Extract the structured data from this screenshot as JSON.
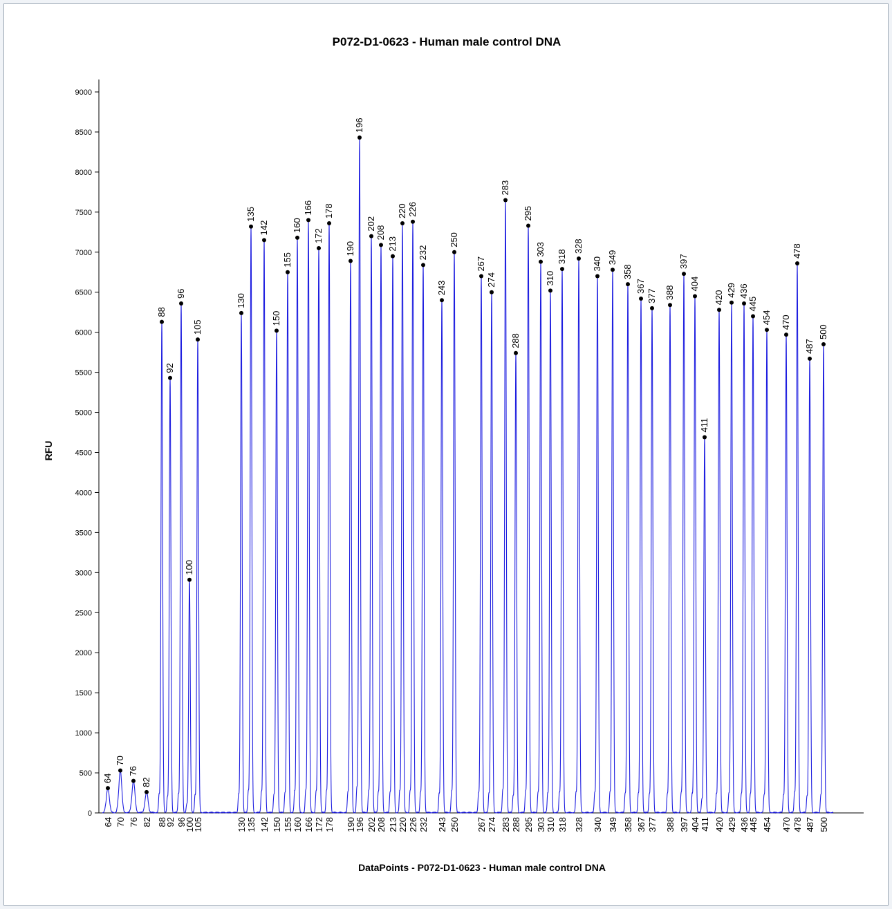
{
  "chart_data": {
    "type": "line",
    "title": "P072-D1-0623 - Human male control DNA",
    "xlabel": "DataPoints - P072-D1-0623 - Human male control DNA",
    "ylabel": "RFU",
    "ylim": [
      0,
      9000
    ],
    "ytick_step": 500,
    "grid": false,
    "legend": "none",
    "colors": {
      "trace": "#1f1fe0",
      "axis": "#000000",
      "background": "#ffffff"
    },
    "peaks": [
      {
        "label": "64",
        "rfu": 310
      },
      {
        "label": "70",
        "rfu": 530
      },
      {
        "label": "76",
        "rfu": 400
      },
      {
        "label": "82",
        "rfu": 260
      },
      {
        "label": "88",
        "rfu": 6130
      },
      {
        "label": "92",
        "rfu": 5430
      },
      {
        "label": "96",
        "rfu": 6360
      },
      {
        "label": "100",
        "rfu": 2910
      },
      {
        "label": "105",
        "rfu": 5910
      },
      {
        "label": "130",
        "rfu": 6240
      },
      {
        "label": "135",
        "rfu": 7320
      },
      {
        "label": "142",
        "rfu": 7150
      },
      {
        "label": "150",
        "rfu": 6020
      },
      {
        "label": "155",
        "rfu": 6750
      },
      {
        "label": "160",
        "rfu": 7180
      },
      {
        "label": "166",
        "rfu": 7400
      },
      {
        "label": "172",
        "rfu": 7050
      },
      {
        "label": "178",
        "rfu": 7360
      },
      {
        "label": "190",
        "rfu": 6890
      },
      {
        "label": "196",
        "rfu": 8430
      },
      {
        "label": "202",
        "rfu": 7200
      },
      {
        "label": "208",
        "rfu": 7090
      },
      {
        "label": "213",
        "rfu": 6950
      },
      {
        "label": "220",
        "rfu": 7360
      },
      {
        "label": "226",
        "rfu": 7380
      },
      {
        "label": "232",
        "rfu": 6840
      },
      {
        "label": "243",
        "rfu": 6400
      },
      {
        "label": "250",
        "rfu": 7000
      },
      {
        "label": "267",
        "rfu": 6700
      },
      {
        "label": "274",
        "rfu": 6500
      },
      {
        "label": "283",
        "rfu": 7650
      },
      {
        "label": "288",
        "rfu": 5740
      },
      {
        "label": "295",
        "rfu": 7330
      },
      {
        "label": "303",
        "rfu": 6880
      },
      {
        "label": "310",
        "rfu": 6520
      },
      {
        "label": "318",
        "rfu": 6790
      },
      {
        "label": "328",
        "rfu": 6920
      },
      {
        "label": "340",
        "rfu": 6700
      },
      {
        "label": "349",
        "rfu": 6780
      },
      {
        "label": "358",
        "rfu": 6600
      },
      {
        "label": "367",
        "rfu": 6420
      },
      {
        "label": "377",
        "rfu": 6300
      },
      {
        "label": "388",
        "rfu": 6340
      },
      {
        "label": "397",
        "rfu": 6730
      },
      {
        "label": "404",
        "rfu": 6450
      },
      {
        "label": "411",
        "rfu": 4690
      },
      {
        "label": "420",
        "rfu": 6280
      },
      {
        "label": "429",
        "rfu": 6370
      },
      {
        "label": "436",
        "rfu": 6360
      },
      {
        "label": "445",
        "rfu": 6200
      },
      {
        "label": "454",
        "rfu": 6030
      },
      {
        "label": "470",
        "rfu": 5970
      },
      {
        "label": "478",
        "rfu": 6860
      },
      {
        "label": "487",
        "rfu": 5670
      },
      {
        "label": "500",
        "rfu": 5850
      }
    ]
  }
}
